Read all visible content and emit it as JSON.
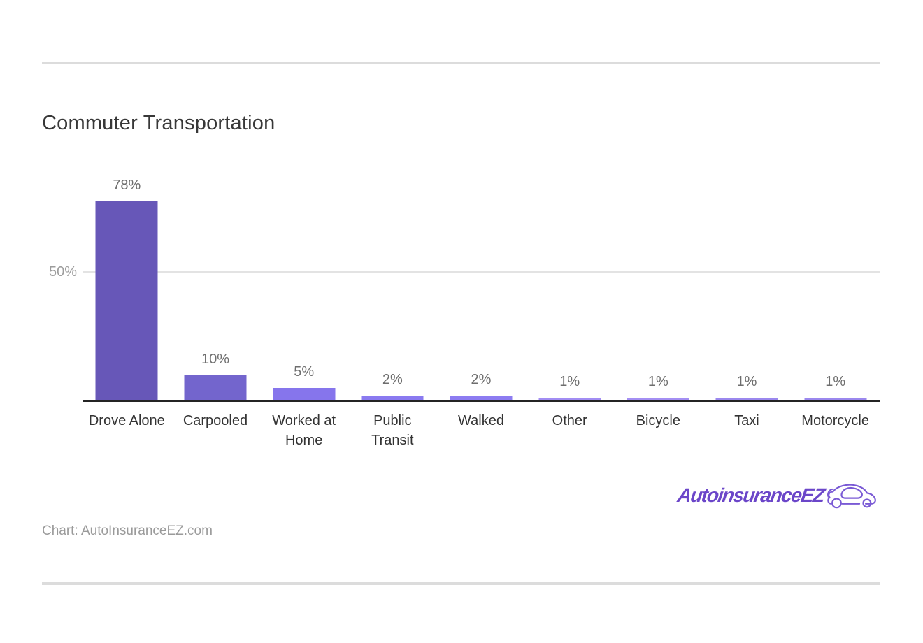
{
  "title": "Commuter Transportation",
  "chart_data": {
    "type": "bar",
    "title": "Commuter Transportation",
    "categories": [
      "Drove Alone",
      "Carpooled",
      "Worked at Home",
      "Public Transit",
      "Walked",
      "Other",
      "Bicycle",
      "Taxi",
      "Motorcycle"
    ],
    "values": [
      78,
      10,
      5,
      2,
      2,
      1,
      1,
      1,
      1
    ],
    "value_labels": [
      "78%",
      "10%",
      "5%",
      "2%",
      "2%",
      "1%",
      "1%",
      "1%",
      "1%"
    ],
    "xlabel": "",
    "ylabel": "",
    "ylim": [
      0,
      91
    ],
    "yticks": [
      {
        "value": 50,
        "label": "50%"
      }
    ],
    "grid": "single horizontal gridline at 50%",
    "legend": "none",
    "bar_colors": [
      "#6757b8",
      "#7365cd",
      "#8675ec",
      "#8a7af0",
      "#8d7cf1",
      "#a28df3",
      "#a48ff3",
      "#9b88ee",
      "#9b88ee"
    ]
  },
  "branding": {
    "logo_text": "AutoinsuranceEZ",
    "logo_color": "#6b46c9",
    "car_icon": "car-outline-icon"
  },
  "footer": {
    "attribution": "Chart: AutoInsuranceEZ.com"
  },
  "colors": {
    "background": "#ffffff",
    "divider": "#dcdcdc",
    "title": "#383838",
    "axis_line": "#242424",
    "gridline": "#e3e3e3",
    "ytick_label": "#9c9c9c",
    "value_label": "#6e6e6e",
    "category_label": "#333333",
    "accent_purple": "#6757b8"
  }
}
